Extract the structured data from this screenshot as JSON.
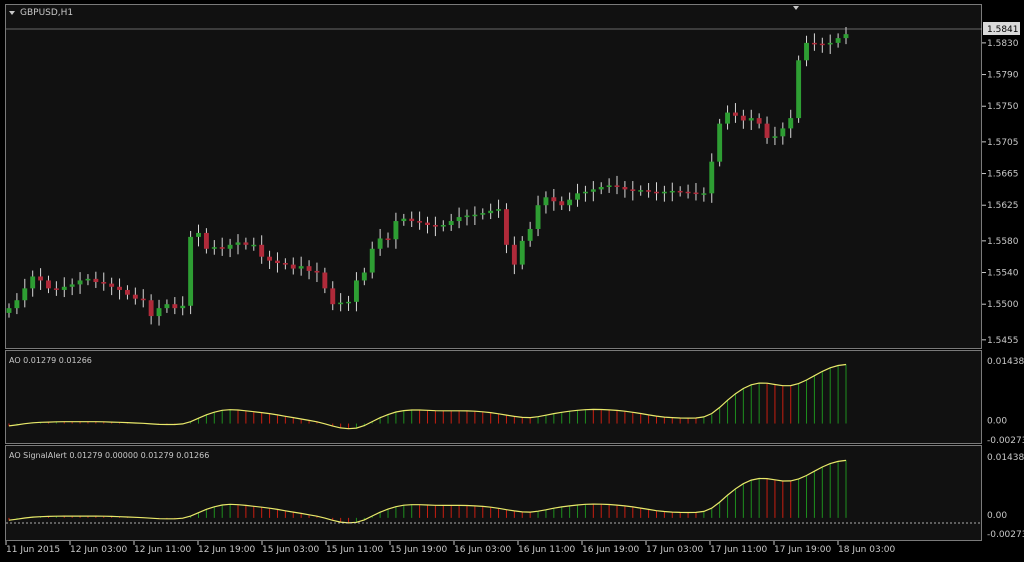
{
  "symbol_title": "GBPUSD,H1",
  "price_axis": {
    "ticks": [
      "1.5830",
      "1.5790",
      "1.5750",
      "1.5705",
      "1.5665",
      "1.5625",
      "1.5580",
      "1.5540",
      "1.5500",
      "1.5455"
    ],
    "current_price": "1.5841"
  },
  "indicators": {
    "ao": {
      "label": "AO 0.01279 0.01266",
      "ticks": [
        "0.01438",
        "0.00",
        "-0.00273"
      ]
    },
    "ao_signal": {
      "label": "AO SignalAlert 0.01279 0.00000 0.01279 0.01266",
      "ticks": [
        "0.01438",
        "0.00",
        "-0.00273"
      ]
    }
  },
  "time_axis": [
    "11 Jun 2015",
    "12 Jun 03:00",
    "12 Jun 11:00",
    "12 Jun 19:00",
    "15 Jun 03:00",
    "15 Jun 11:00",
    "15 Jun 19:00",
    "16 Jun 03:00",
    "16 Jun 11:00",
    "16 Jun 19:00",
    "17 Jun 03:00",
    "17 Jun 11:00",
    "17 Jun 19:00",
    "18 Jun 03:00"
  ],
  "colors": {
    "bull": "#2e9e33",
    "bear": "#b02a3a",
    "ao_up": "#1e8f1e",
    "ao_down": "#c81e10",
    "signal_line": "#e8e86a",
    "background": "#111111",
    "grid": "#5a5a5a"
  },
  "chart_data": {
    "type": "candlestick",
    "price_range": [
      1.544,
      1.585
    ],
    "closes": [
      1.5495,
      1.5505,
      1.552,
      1.5535,
      1.553,
      1.552,
      1.5518,
      1.5522,
      1.5525,
      1.553,
      1.5532,
      1.5528,
      1.5526,
      1.5522,
      1.5518,
      1.5512,
      1.5507,
      1.5505,
      1.5485,
      1.5495,
      1.55,
      1.5495,
      1.5498,
      1.5585,
      1.559,
      1.557,
      1.5572,
      1.557,
      1.5575,
      1.5578,
      1.5575,
      1.5575,
      1.556,
      1.5555,
      1.5552,
      1.555,
      1.5545,
      1.5548,
      1.5542,
      1.554,
      1.552,
      1.55,
      1.5502,
      1.5503,
      1.553,
      1.554,
      1.557,
      1.5583,
      1.5582,
      1.5605,
      1.5608,
      1.5605,
      1.5603,
      1.56,
      1.5598,
      1.56,
      1.5605,
      1.561,
      1.5612,
      1.5613,
      1.5615,
      1.5618,
      1.562,
      1.5575,
      1.555,
      1.558,
      1.5595,
      1.5625,
      1.5635,
      1.563,
      1.5625,
      1.5632,
      1.564,
      1.5642,
      1.5645,
      1.5648,
      1.565,
      1.5648,
      1.5645,
      1.5643,
      1.5644,
      1.5642,
      1.564,
      1.5642,
      1.5643,
      1.5642,
      1.5641,
      1.564,
      1.564,
      1.568,
      1.5728,
      1.5742,
      1.5738,
      1.5732,
      1.5735,
      1.5728,
      1.571,
      1.5712,
      1.5722,
      1.5735,
      1.5808,
      1.583,
      1.5829,
      1.5828,
      1.583,
      1.5836,
      1.5841
    ],
    "ao_values": [
      -0.0006,
      -0.0003,
      0.0,
      0.0002,
      0.0003,
      0.0003,
      0.0004,
      0.0004,
      0.0004,
      0.0004,
      0.0004,
      0.0004,
      0.0004,
      0.0003,
      0.0003,
      0.0002,
      0.0001,
      0.0001,
      -0.0001,
      -0.0002,
      -0.0002,
      -0.0002,
      -0.0002,
      0.0003,
      0.0012,
      0.002,
      0.0025,
      0.003,
      0.0031,
      0.003,
      0.0028,
      0.0026,
      0.0024,
      0.0022,
      0.0019,
      0.0016,
      0.0013,
      0.001,
      0.0007,
      0.0004,
      0.0,
      -0.0006,
      -0.001,
      -0.0012,
      -0.0011,
      -0.0006,
      0.0005,
      0.0013,
      0.002,
      0.0026,
      0.0029,
      0.003,
      0.003,
      0.0029,
      0.0028,
      0.0028,
      0.0028,
      0.0028,
      0.0028,
      0.0027,
      0.0026,
      0.0024,
      0.0022,
      0.0018,
      0.0016,
      0.0013,
      0.0012,
      0.0015,
      0.0018,
      0.0022,
      0.0025,
      0.0027,
      0.0029,
      0.0031,
      0.0031,
      0.0031,
      0.003,
      0.0029,
      0.0027,
      0.0025,
      0.0022,
      0.0019,
      0.0016,
      0.0014,
      0.0013,
      0.0012,
      0.0012,
      0.0012,
      0.0013,
      0.002,
      0.0035,
      0.0052,
      0.0066,
      0.0078,
      0.0086,
      0.009,
      0.0089,
      0.0086,
      0.0082,
      0.0082,
      0.0087,
      0.0095,
      0.0105,
      0.0115,
      0.0123,
      0.0128,
      0.013
    ]
  }
}
